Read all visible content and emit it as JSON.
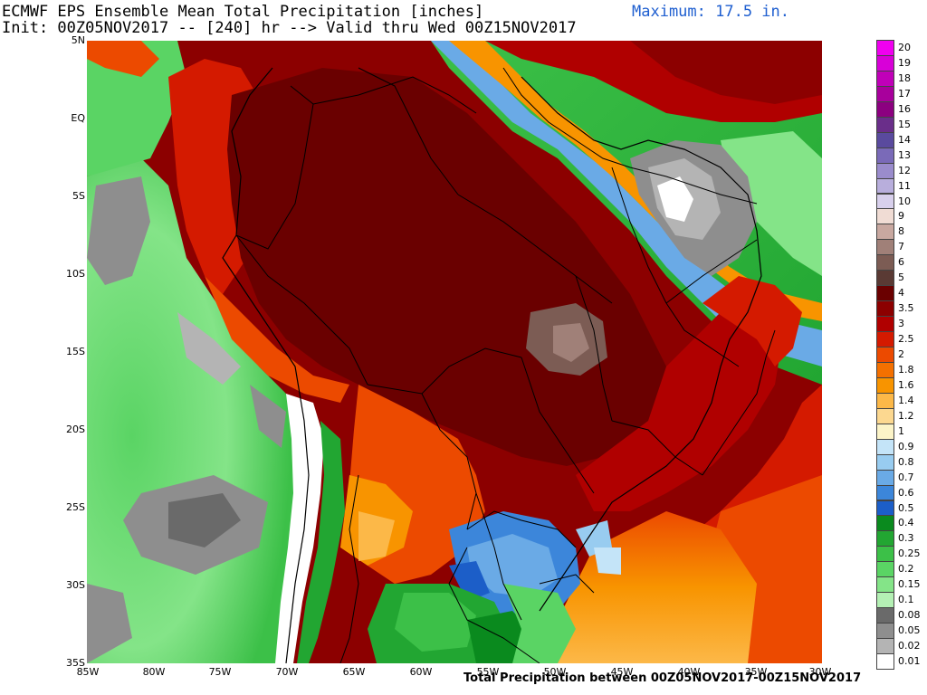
{
  "header": {
    "title_line1": "ECMWF EPS Ensemble Mean Total Precipitation [inches]",
    "title_line2": "Init: 00Z05NOV2017 -- [240] hr --> Valid thru Wed 00Z15NOV2017",
    "maximum": "Maximum: 17.5 in."
  },
  "footer": {
    "text": "Total Precipitation between 00Z05NOV2017-00Z15NOV2017"
  },
  "axes": {
    "lat_labels": [
      "5N",
      "EQ",
      "5S",
      "10S",
      "15S",
      "20S",
      "25S",
      "30S",
      "35S"
    ],
    "lon_labels": [
      "85W",
      "80W",
      "75W",
      "70W",
      "65W",
      "60W",
      "55W",
      "50W",
      "45W",
      "40W",
      "35W",
      "30W"
    ]
  },
  "legend": {
    "items": [
      {
        "label": "20",
        "color": "#f000f0"
      },
      {
        "label": "19",
        "color": "#d800d8"
      },
      {
        "label": "18",
        "color": "#c000b8"
      },
      {
        "label": "17",
        "color": "#a8009c"
      },
      {
        "label": "16",
        "color": "#8c0080"
      },
      {
        "label": "15",
        "color": "#6a2e8a"
      },
      {
        "label": "14",
        "color": "#5a4a9e"
      },
      {
        "label": "13",
        "color": "#7a6ab8"
      },
      {
        "label": "12",
        "color": "#9a8ccc"
      },
      {
        "label": "11",
        "color": "#b8aedc"
      },
      {
        "label": "10",
        "color": "#d8d0ec"
      },
      {
        "label": "9",
        "color": "#f0dcd4"
      },
      {
        "label": "8",
        "color": "#c8a8a0"
      },
      {
        "label": "7",
        "color": "#a08078"
      },
      {
        "label": "6",
        "color": "#7c5c54"
      },
      {
        "label": "5",
        "color": "#5a3a34"
      },
      {
        "label": "4",
        "color": "#6a0000"
      },
      {
        "label": "3.5",
        "color": "#8c0000"
      },
      {
        "label": "3",
        "color": "#b00000"
      },
      {
        "label": "2.5",
        "color": "#d41a00"
      },
      {
        "label": "2",
        "color": "#ec4a00"
      },
      {
        "label": "1.8",
        "color": "#f47000"
      },
      {
        "label": "1.6",
        "color": "#f89400"
      },
      {
        "label": "1.4",
        "color": "#fcb848"
      },
      {
        "label": "1.2",
        "color": "#fcd890"
      },
      {
        "label": "1",
        "color": "#fcf4c8"
      },
      {
        "label": "0.9",
        "color": "#c4e4f8"
      },
      {
        "label": "0.8",
        "color": "#98ccf0"
      },
      {
        "label": "0.7",
        "color": "#6aaae6"
      },
      {
        "label": "0.6",
        "color": "#3c86da"
      },
      {
        "label": "0.5",
        "color": "#1c5ec8"
      },
      {
        "label": "0.4",
        "color": "#0a8a1e"
      },
      {
        "label": "0.3",
        "color": "#22a632"
      },
      {
        "label": "0.25",
        "color": "#3cc048"
      },
      {
        "label": "0.2",
        "color": "#5ad464"
      },
      {
        "label": "0.15",
        "color": "#84e488"
      },
      {
        "label": "0.1",
        "color": "#b4f0b4"
      },
      {
        "label": "0.08",
        "color": "#6a6a6a"
      },
      {
        "label": "0.05",
        "color": "#8e8e8e"
      },
      {
        "label": "0.02",
        "color": "#b4b4b4"
      },
      {
        "label": "0.01",
        "color": "#ffffff"
      }
    ]
  }
}
